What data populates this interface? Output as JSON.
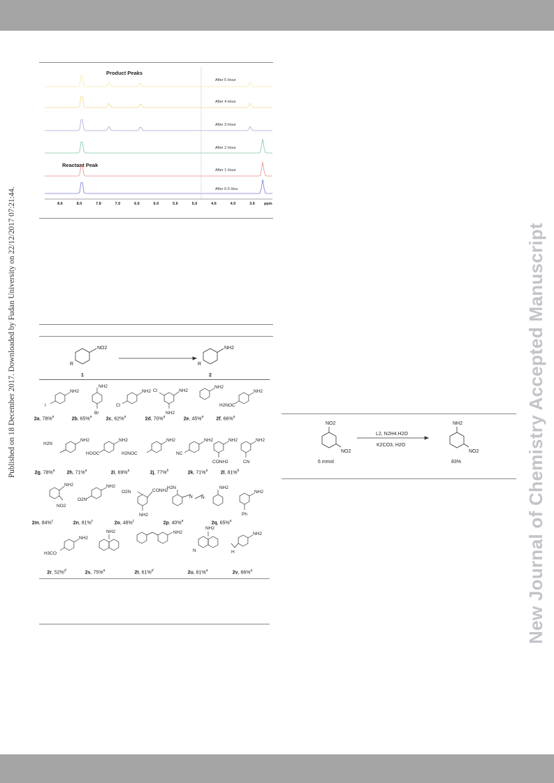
{
  "sidebar_text": "Published on 18 December 2017. Downloaded by Fudan University on 22/12/2017 07:21:44.",
  "watermark": "New Journal of Chemistry Accepted Manuscript",
  "nmr": {
    "product_label": "Product Peaks",
    "reactant_label": "Reactant Peak",
    "trace_labels": [
      "After 5 Hour",
      "After 4 Hour",
      "After 3 Hour",
      "After 2 Hour",
      "After 1 Hour",
      "After 0.5 Hou"
    ],
    "trace_colors": [
      "#f3e9a6",
      "#f0d98e",
      "#a8a8d8",
      "#7fc9a4",
      "#e88f8f",
      "#7a7ad6"
    ],
    "axis_ticks": [
      "8.6",
      "8.0",
      "7.8",
      "7.0",
      "6.6",
      "6.0",
      "5.6",
      "5.0",
      "4.6",
      "4.0",
      "3.6"
    ],
    "axis_unit": "ppm"
  },
  "scheme1": {
    "reactant_number": "1",
    "product_number": "2",
    "substituent_r": "R",
    "no2_group": "NO2",
    "nh2_group": "NH2"
  },
  "compounds": [
    {
      "id": "2a",
      "yield": "78%",
      "note": "a"
    },
    {
      "id": "2b",
      "yield": "65%",
      "note": "a"
    },
    {
      "id": "2c",
      "yield": "62%",
      "note": "a"
    },
    {
      "id": "2d",
      "yield": "70%",
      "note": "a"
    },
    {
      "id": "2e",
      "yield": "45%",
      "note": "a"
    },
    {
      "id": "2f",
      "yield": "66%",
      "note": "a"
    },
    {
      "id": "2g",
      "yield": "78%",
      "note": "a"
    },
    {
      "id": "2h",
      "yield": "71%",
      "note": "a"
    },
    {
      "id": "2i",
      "yield": "69%",
      "note": "a"
    },
    {
      "id": "2j",
      "yield": "77%",
      "note": "b"
    },
    {
      "id": "2k",
      "yield": "71%",
      "note": "a"
    },
    {
      "id": "2l",
      "yield": "81%",
      "note": "b"
    },
    {
      "id": "2m",
      "yield": "84%",
      "note": "c"
    },
    {
      "id": "2n",
      "yield": "81%",
      "note": "c"
    },
    {
      "id": "2o",
      "yield": "48%",
      "note": "c"
    },
    {
      "id": "2p",
      "yield": "40%",
      "note": "a"
    },
    {
      "id": "2q",
      "yield": "65%",
      "note": "a"
    },
    {
      "id": "2r",
      "yield": "52%",
      "note": "d"
    },
    {
      "id": "2s",
      "yield": "75%",
      "note": "a"
    },
    {
      "id": "2t",
      "yield": "61%",
      "note": "d"
    },
    {
      "id": "2u",
      "yield": "81%",
      "note": "a"
    },
    {
      "id": "2v",
      "yield": "66%",
      "note": "a"
    }
  ],
  "substituents": {
    "i": "I",
    "br": "Br",
    "cl": "Cl",
    "nh2": "NH2",
    "h2noc": "H2NOC",
    "h2n": "H2N",
    "hooc": "HOOC",
    "nc": "NC",
    "conh2": "CONH2",
    "cn": "CN",
    "no2": "NO2",
    "o2n": "O2N",
    "ph": "Ph",
    "h3co": "H3CO",
    "n": "N",
    "nh": "H"
  },
  "scheme2": {
    "reactant_amount": "6 mmol",
    "reagent_top": "L2, N2H4.H2O",
    "reagent_bottom": "K2CO3, H2O",
    "yield": "83%",
    "no2_group": "NO2",
    "nh2_group": "NH2"
  }
}
